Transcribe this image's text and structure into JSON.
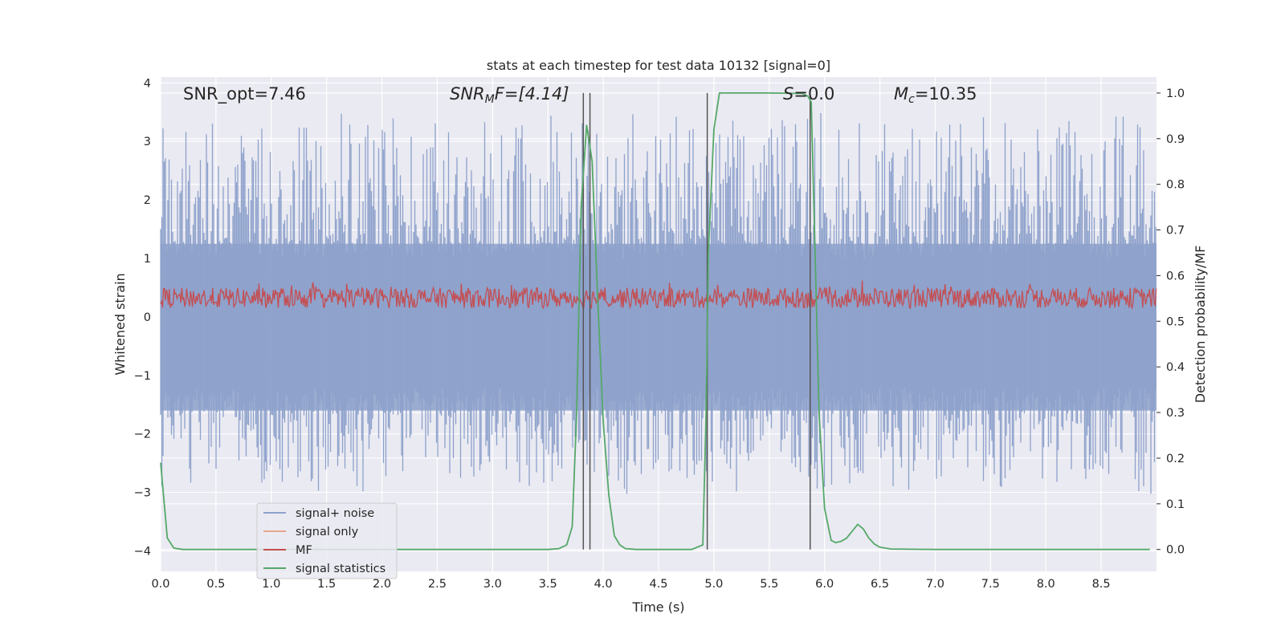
{
  "chart_data": {
    "type": "line",
    "title": "stats at each timestep for test data 10132 [signal=0]",
    "xlabel": "Time (s)",
    "ylabel_left": "Whitened strain",
    "ylabel_right": "Detection probability/MF",
    "xlim": [
      0.0,
      9.0
    ],
    "ylim_left": [
      -4.35,
      4.1
    ],
    "ylim_right": [
      -0.048,
      1.035
    ],
    "x_ticks": [
      "0.0",
      "0.5",
      "1.0",
      "1.5",
      "2.0",
      "2.5",
      "3.0",
      "3.5",
      "4.0",
      "4.5",
      "5.0",
      "5.5",
      "6.0",
      "6.5",
      "7.0",
      "7.5",
      "8.0",
      "8.5"
    ],
    "y_ticks_left": [
      "−4",
      "−3",
      "−2",
      "−1",
      "0",
      "1",
      "2",
      "3",
      "4"
    ],
    "y_ticks_right": [
      "0.0",
      "0.1",
      "0.2",
      "0.3",
      "0.4",
      "0.5",
      "0.6",
      "0.7",
      "0.8",
      "0.9",
      "1.0"
    ],
    "grid": true,
    "legend_position": "lower-left",
    "annotations": {
      "snr_opt": "SNR_opt=7.46",
      "snr_mf_base": "SNR",
      "snr_mf_sub": "M",
      "snr_mf_rest": "F=[4.14]",
      "s_base": "S",
      "s_rest": "=0.0",
      "mc_base": "M",
      "mc_sub": "c",
      "mc_rest": "=10.35"
    },
    "series": [
      {
        "name": "signal+ noise",
        "color": "#8da1cb",
        "description_values": {
          "envelope_low": -2.8,
          "envelope_high": 3.3
        }
      },
      {
        "name": "signal only",
        "color": "#e8a68a",
        "values": []
      },
      {
        "name": "MF",
        "color": "#c44e52",
        "description_values": {
          "band_low": 0.05,
          "band_high": 0.55
        }
      },
      {
        "name": "signal statistics",
        "color": "#55a868",
        "x": [
          0.0,
          0.06,
          0.12,
          0.2,
          0.5,
          1.0,
          1.5,
          2.0,
          2.5,
          3.0,
          3.5,
          3.6,
          3.67,
          3.72,
          3.76,
          3.8,
          3.85,
          3.9,
          3.95,
          4.0,
          4.05,
          4.1,
          4.15,
          4.2,
          4.3,
          4.5,
          4.8,
          4.9,
          4.93,
          4.95,
          5.0,
          5.05,
          5.2,
          5.5,
          5.8,
          5.85,
          5.88,
          5.92,
          5.95,
          6.0,
          6.06,
          6.1,
          6.15,
          6.2,
          6.25,
          6.3,
          6.35,
          6.4,
          6.45,
          6.5,
          6.6,
          7.0,
          8.0,
          8.94
        ],
        "values": [
          0.19,
          0.025,
          0.003,
          0.0,
          0.0,
          0.0,
          0.0,
          0.0,
          0.0,
          0.0,
          0.0,
          0.002,
          0.01,
          0.05,
          0.3,
          0.75,
          0.93,
          0.85,
          0.55,
          0.28,
          0.12,
          0.03,
          0.01,
          0.002,
          0.0,
          0.0,
          0.0,
          0.01,
          0.3,
          0.65,
          0.92,
          1.0,
          1.0,
          1.0,
          0.999,
          0.993,
          0.98,
          0.6,
          0.3,
          0.09,
          0.02,
          0.015,
          0.018,
          0.025,
          0.04,
          0.055,
          0.045,
          0.025,
          0.012,
          0.005,
          0.001,
          0.0,
          0.0,
          0.0
        ]
      }
    ],
    "vertical_lines_x": [
      3.82,
      3.88,
      4.94,
      5.87
    ]
  }
}
